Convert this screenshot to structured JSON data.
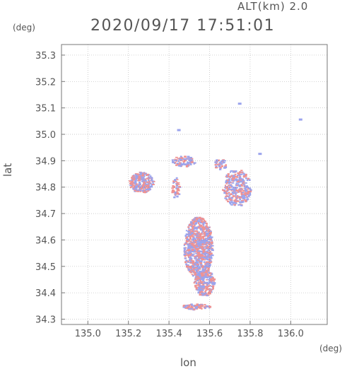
{
  "header": {
    "alt_label": "ALT(km) 2.0",
    "timestamp": "2020/09/17 17:51:01"
  },
  "axes": {
    "y_unit": "(deg)",
    "x_unit": "(deg)",
    "xlabel": "lon",
    "ylabel": "lat",
    "xlim": [
      134.87,
      136.18
    ],
    "ylim": [
      34.28,
      35.34
    ],
    "xticks": [
      "135.0",
      "135.2",
      "135.4",
      "135.6",
      "135.8",
      "136.0"
    ],
    "yticks": [
      "34.3",
      "34.4",
      "34.5",
      "34.6",
      "34.7",
      "34.8",
      "34.9",
      "35.0",
      "35.1",
      "35.2",
      "35.3"
    ]
  },
  "colors": {
    "positive": "#e23a3a",
    "negative": "#4a5ae0",
    "frame": "#777777",
    "grid": "#bbbbbb"
  }
}
